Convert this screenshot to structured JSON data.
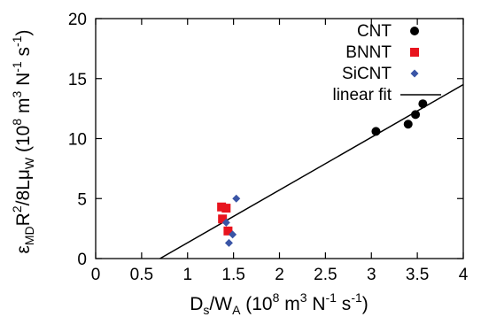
{
  "chart_data": {
    "type": "scatter",
    "xlabel": {
      "base": "D",
      "sub": "s",
      "mid": "/W",
      "sub2": "A",
      "units_open": " (10",
      "exp": "8",
      "units_mid": " m",
      "exp2": "3",
      "units_n": " N",
      "exp3": "-1",
      "units_s": " s",
      "exp4": "-1",
      "units_close": ")"
    },
    "ylabel": {
      "eps": "ε",
      "sub": "MD",
      "r": "R",
      "exp_r": "2",
      "mid": "/8Lμ",
      "sub2": "W",
      "units_open": " (10",
      "exp": "8",
      "units_mid": " m",
      "exp2": "3",
      "units_n": " N",
      "exp3": "-1",
      "units_s": " s",
      "exp4": "-1",
      "units_close": ")"
    },
    "xlim": [
      0,
      4
    ],
    "ylim": [
      0,
      20
    ],
    "xticks": [
      "0",
      "0.5",
      "1",
      "1.5",
      "2",
      "2.5",
      "3",
      "3.5",
      "4"
    ],
    "xtick_values": [
      0,
      0.5,
      1,
      1.5,
      2,
      2.5,
      3,
      3.5,
      4
    ],
    "yticks": [
      "0",
      "5",
      "10",
      "15",
      "20"
    ],
    "ytick_values": [
      0,
      5,
      10,
      15,
      20
    ],
    "legend_position": "top-right",
    "series": [
      {
        "name": "CNT",
        "marker": "circle",
        "color": "#000000",
        "points": [
          [
            3.05,
            10.6
          ],
          [
            3.4,
            11.2
          ],
          [
            3.48,
            12.0
          ],
          [
            3.56,
            12.9
          ]
        ]
      },
      {
        "name": "BNNT",
        "marker": "square",
        "color": "#e8141e",
        "points": [
          [
            1.37,
            4.3
          ],
          [
            1.42,
            4.2
          ],
          [
            1.38,
            3.3
          ],
          [
            1.44,
            2.3
          ]
        ]
      },
      {
        "name": "SiCNT",
        "marker": "diamond",
        "color": "#3a55a6",
        "points": [
          [
            1.53,
            5.0
          ],
          [
            1.42,
            3.0
          ],
          [
            1.49,
            2.0
          ],
          [
            1.45,
            1.3
          ]
        ]
      }
    ],
    "fit": {
      "name": "linear fit",
      "color": "#000000",
      "x": [
        0.7,
        4.0
      ],
      "y": [
        0.0,
        14.5
      ]
    }
  }
}
